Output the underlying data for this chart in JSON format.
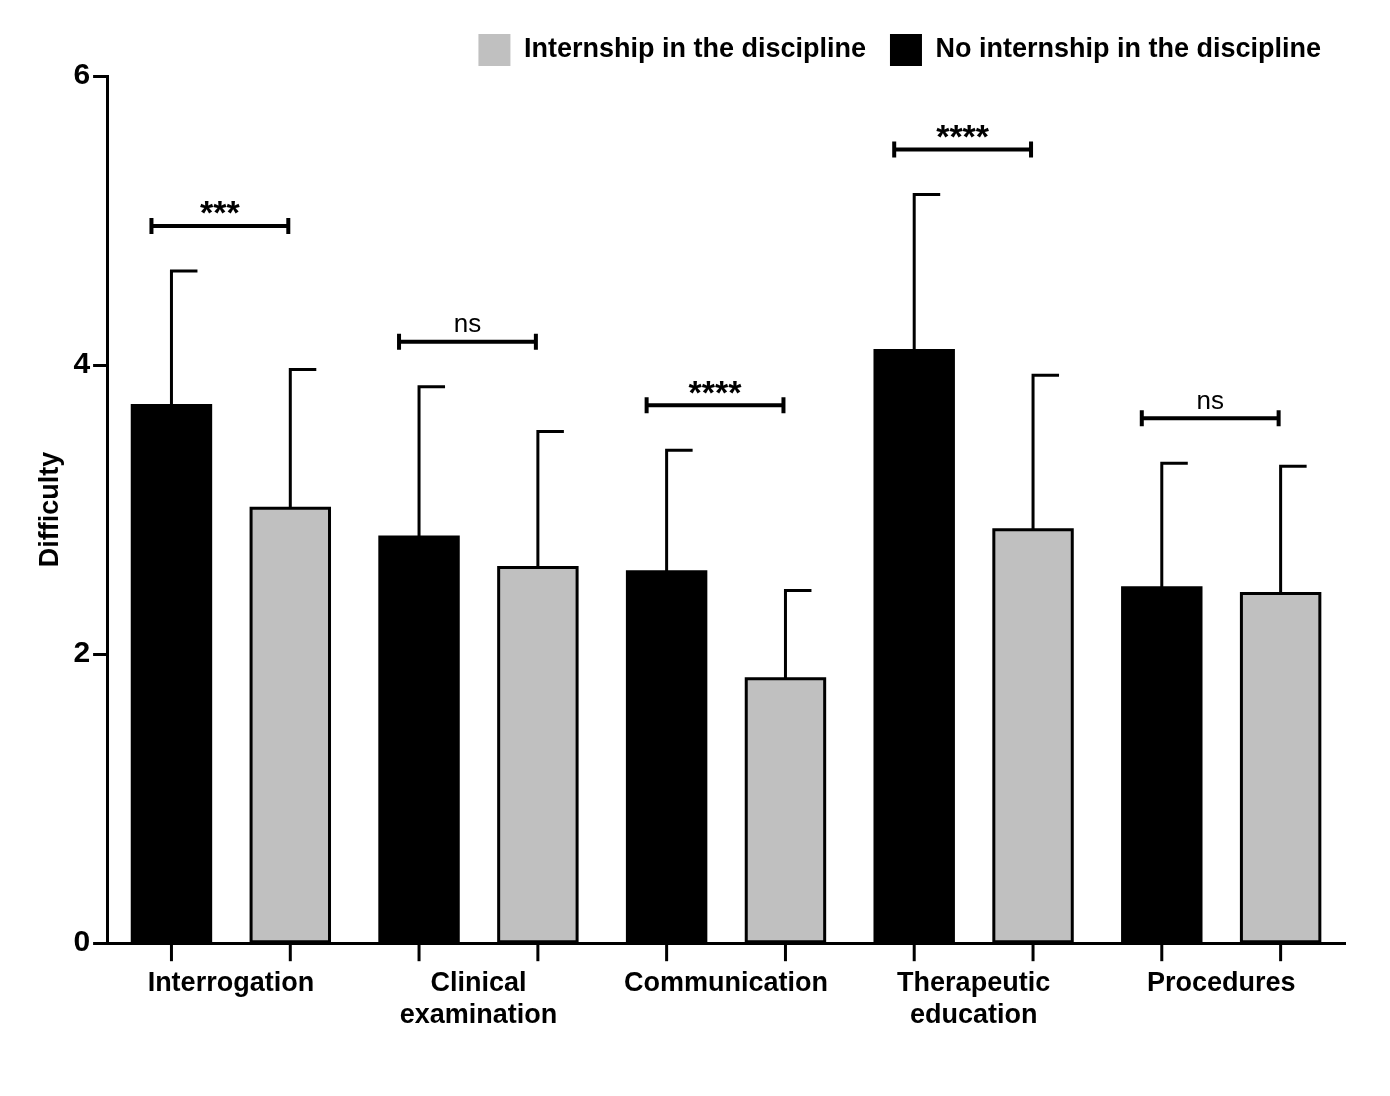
{
  "chart_data": {
    "type": "bar",
    "ylabel": "Difficulty",
    "categories": [
      "Interrogation",
      "Clinical examination",
      "Communication",
      "Therapeutic education",
      "Procedures"
    ],
    "series": [
      {
        "name": "No internship in the discipline",
        "color": "#000000",
        "values": [
          3.72,
          2.81,
          2.57,
          4.1,
          2.46
        ],
        "errors": [
          [
            3.72,
            4.65
          ],
          [
            2.81,
            3.85
          ],
          [
            2.57,
            3.41
          ],
          [
            4.1,
            5.18
          ],
          [
            2.46,
            3.32
          ]
        ]
      },
      {
        "name": "Internship in the discipline",
        "color": "#c0c0c0",
        "values": [
          3.01,
          2.6,
          1.83,
          2.86,
          2.42
        ],
        "errors": [
          [
            3.01,
            3.97
          ],
          [
            2.6,
            3.54
          ],
          [
            1.83,
            2.44
          ],
          [
            2.86,
            3.93
          ],
          [
            2.42,
            3.3
          ]
        ]
      }
    ],
    "ylim": [
      0,
      6
    ],
    "yticks": [
      0,
      2,
      4,
      6
    ],
    "grid": false,
    "legend": "top right",
    "annotations": [
      "***",
      "ns",
      "****",
      "****",
      "ns"
    ]
  }
}
